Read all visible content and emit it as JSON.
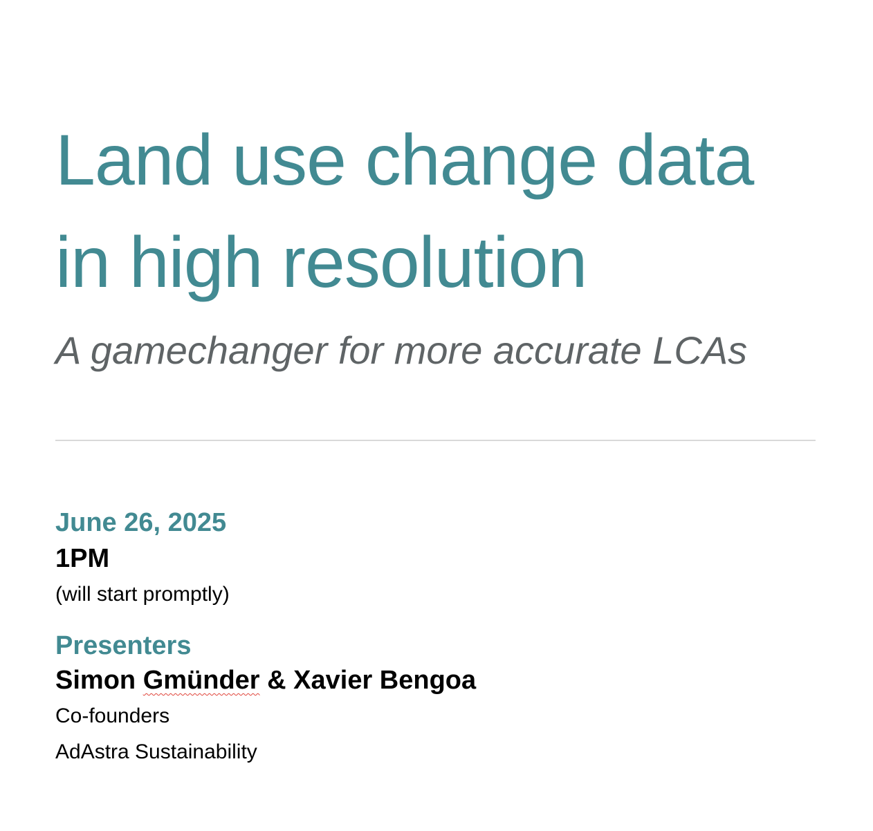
{
  "document": {
    "title_line1": "Land use change data",
    "title_line2": "in high resolution",
    "subtitle": "A gamechanger for more accurate LCAs",
    "date": "June 26, 2025",
    "time": "1PM",
    "time_note": "(will start promptly)",
    "presenters_heading": "Presenters",
    "presenter_1": "Simon",
    "presenter_1_surname": "Gmünder",
    "presenters_joiner": " & ",
    "presenter_2": "Xavier Bengoa",
    "presenters_role": "Co-founders",
    "organization": "AdAstra Sustainability"
  },
  "colors": {
    "accent": "#428a92",
    "subtitle_gray": "#5f6466",
    "divider": "#d9d9d9",
    "spellcheck_underline": "#e0443a"
  }
}
